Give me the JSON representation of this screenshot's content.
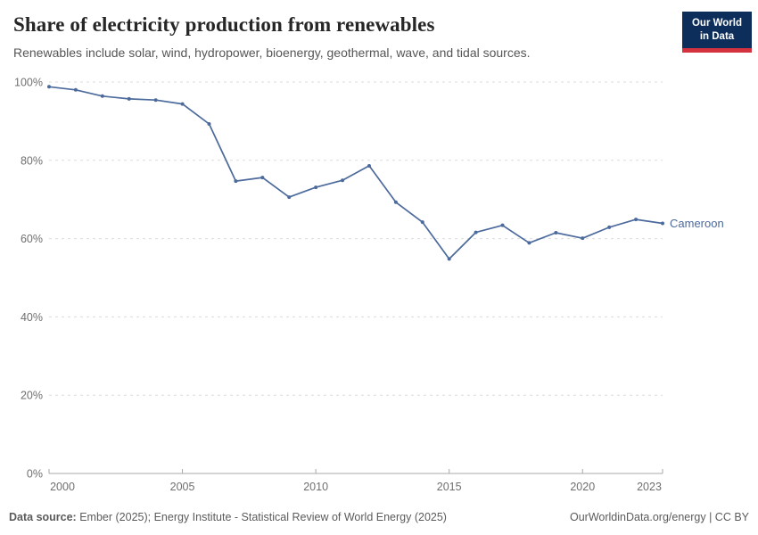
{
  "header": {
    "title": "Share of electricity production from renewables",
    "subtitle": "Renewables include solar, wind, hydropower, bioenergy, geothermal, wave, and tidal sources."
  },
  "logo": {
    "line1": "Our World",
    "line2": "in Data",
    "bg": "#0D2E5B",
    "accent": "#D4323E"
  },
  "colors": {
    "line": "#4C6A9C",
    "grid": "#DCDCDC",
    "axis": "#A8A8A8",
    "tick_text": "#6F6F6F",
    "entity_label": "#4C6A9C"
  },
  "chart_data": {
    "type": "line",
    "title": "Share of electricity production from renewables",
    "subtitle": "Renewables include solar, wind, hydropower, bioenergy, geothermal, wave, and tidal sources.",
    "xlabel": "",
    "ylabel": "",
    "xlim": [
      2000,
      2023
    ],
    "ylim": [
      0,
      100
    ],
    "grid": "horizontal-dashed",
    "legend_position": "line-end-label",
    "x": [
      2000,
      2001,
      2002,
      2003,
      2004,
      2005,
      2006,
      2007,
      2008,
      2009,
      2010,
      2011,
      2012,
      2013,
      2014,
      2015,
      2016,
      2017,
      2018,
      2019,
      2020,
      2021,
      2022,
      2023
    ],
    "series": [
      {
        "name": "Cameroon",
        "color": "#4C6A9C",
        "values": [
          98.8,
          98.0,
          96.4,
          95.7,
          95.4,
          94.4,
          89.3,
          74.7,
          75.6,
          70.6,
          73.1,
          74.9,
          78.6,
          69.3,
          64.2,
          54.8,
          61.6,
          63.4,
          58.9,
          61.5,
          60.1,
          62.9,
          64.9,
          63.9
        ]
      }
    ],
    "yticks": [
      {
        "value": 0,
        "label": "0%"
      },
      {
        "value": 20,
        "label": "20%"
      },
      {
        "value": 40,
        "label": "40%"
      },
      {
        "value": 60,
        "label": "60%"
      },
      {
        "value": 80,
        "label": "80%"
      },
      {
        "value": 100,
        "label": "100%"
      }
    ],
    "xticks": [
      {
        "value": 2000,
        "label": "2000"
      },
      {
        "value": 2005,
        "label": "2005"
      },
      {
        "value": 2010,
        "label": "2010"
      },
      {
        "value": 2015,
        "label": "2015"
      },
      {
        "value": 2020,
        "label": "2020"
      },
      {
        "value": 2023,
        "label": "2023"
      }
    ]
  },
  "footer": {
    "source_label": "Data source:",
    "source_text": " Ember (2025); Energy Institute - Statistical Review of World Energy (2025)",
    "right_text": "OurWorldinData.org/energy | CC BY"
  }
}
